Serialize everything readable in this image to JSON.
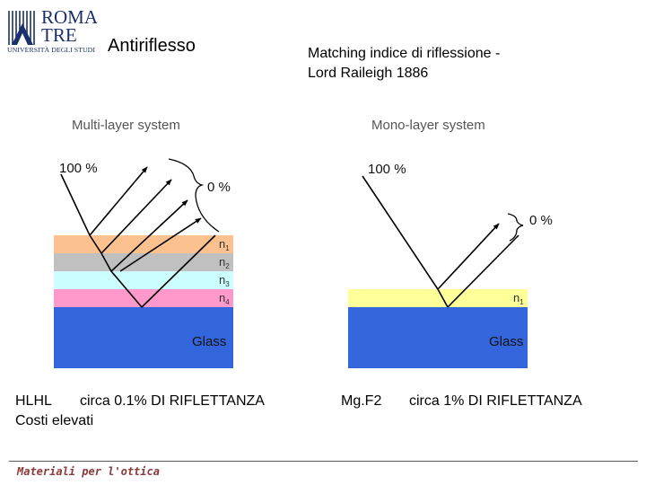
{
  "logo": {
    "line1": "ROMA",
    "line2": "TRE",
    "line3": "UNIVERSITÀ DEGLI STUDI",
    "icon": "roma-tre-logo-icon"
  },
  "header": {
    "title": "Antiriflesso",
    "subtitle_line1": "Matching indice di riflessione  -",
    "subtitle_line2": "Lord Raileigh 1886"
  },
  "multilayer": {
    "heading": "Multi-layer system",
    "incident": "100 %",
    "reflected": "0 %",
    "layers": [
      {
        "label": "n",
        "sub": "1",
        "color": "#fbc18f"
      },
      {
        "label": "n",
        "sub": "2",
        "color": "#c0c0c0"
      },
      {
        "label": "n",
        "sub": "3",
        "color": "#ccffff"
      },
      {
        "label": "n",
        "sub": "4",
        "color": "#ff99cc"
      }
    ],
    "substrate": "Glass",
    "caption_line1_a": "HLHL",
    "caption_line1_b": "circa 0.1% DI RIFLETTANZA",
    "caption_line2": "Costi elevati"
  },
  "monolayer": {
    "heading": "Mono-layer system",
    "incident": "100 %",
    "reflected": "0 %",
    "layer": {
      "label": "n",
      "sub": "1",
      "color": "#ffff99"
    },
    "substrate": "Glass",
    "caption_a": "Mg.F2",
    "caption_b": "circa 1% DI RIFLETTANZA"
  },
  "colors": {
    "glass": "#3366dd",
    "ray": "#000000",
    "footer_text": "#8b3a3a"
  },
  "footer": {
    "text": "Materiali per l'ottica"
  }
}
